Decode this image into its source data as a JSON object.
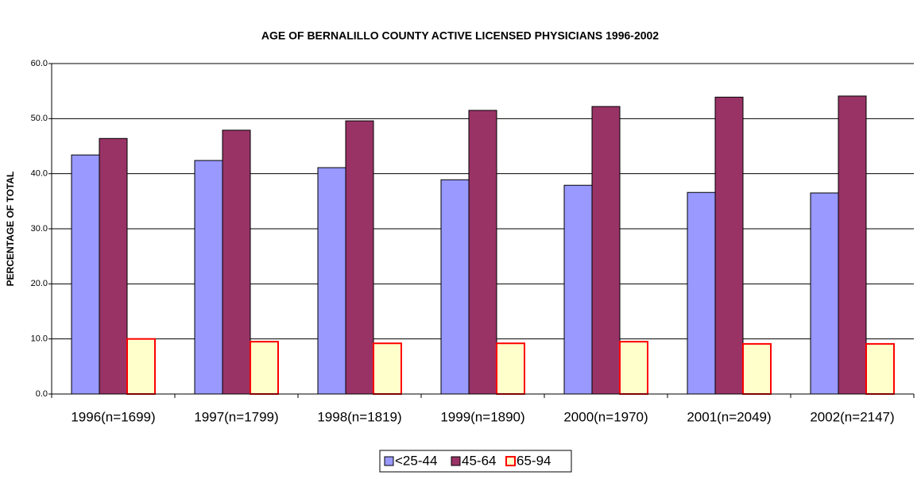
{
  "chart_data": {
    "type": "bar",
    "title": "AGE OF BERNALILLO COUNTY  ACTIVE LICENSED PHYSICIANS 1996-2002",
    "y_label": "PERCENTAGE OF TOTAL",
    "categories": [
      "1996(n=1699)",
      "1997(n=1799)",
      "1998(n=1819)",
      "1999(n=1890)",
      "2000(n=1970)",
      "2001(n=2049)",
      "2002(n=2147)"
    ],
    "series": [
      {
        "name": "<25-44",
        "color": "#9999ff",
        "edgecolor": "#000000",
        "values": [
          43.4,
          42.4,
          41.1,
          38.9,
          37.9,
          36.6,
          36.5
        ]
      },
      {
        "name": "45-64",
        "color": "#993366",
        "edgecolor": "#000000",
        "values": [
          46.4,
          47.9,
          49.6,
          51.5,
          52.2,
          53.9,
          54.1
        ]
      },
      {
        "name": "65-94",
        "color": "#ffffcc",
        "edgecolor": "#ff0000",
        "values": [
          10.0,
          9.5,
          9.2,
          9.2,
          9.5,
          9.1,
          9.1
        ]
      }
    ],
    "ylim": [
      0,
      60
    ],
    "yticks": [
      {
        "value": 0,
        "label": "0.0"
      },
      {
        "value": 10,
        "label": "10.0"
      },
      {
        "value": 20,
        "label": "20.0"
      },
      {
        "value": 30,
        "label": "30.0"
      },
      {
        "value": 40,
        "label": "40.0"
      },
      {
        "value": 50,
        "label": "50.0"
      },
      {
        "value": 60,
        "label": "60.0"
      }
    ],
    "grid": true,
    "legend": "bottom"
  }
}
